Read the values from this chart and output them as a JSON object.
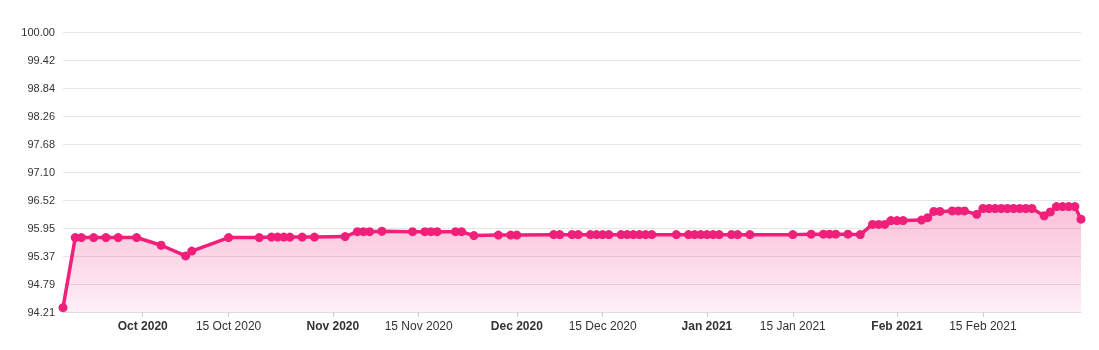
{
  "chart_data": {
    "type": "area",
    "x": [
      "2020-09-18",
      "2020-09-20",
      "2020-09-21",
      "2020-09-23",
      "2020-09-25",
      "2020-09-27",
      "2020-09-30",
      "2020-10-04",
      "2020-10-08",
      "2020-10-09",
      "2020-10-15",
      "2020-10-20",
      "2020-10-22",
      "2020-10-23",
      "2020-10-24",
      "2020-10-25",
      "2020-10-27",
      "2020-10-29",
      "2020-11-03",
      "2020-11-05",
      "2020-11-06",
      "2020-11-07",
      "2020-11-09",
      "2020-11-14",
      "2020-11-16",
      "2020-11-17",
      "2020-11-18",
      "2020-11-21",
      "2020-11-22",
      "2020-11-24",
      "2020-11-28",
      "2020-11-30",
      "2020-12-01",
      "2020-12-07",
      "2020-12-08",
      "2020-12-10",
      "2020-12-11",
      "2020-12-13",
      "2020-12-14",
      "2020-12-15",
      "2020-12-16",
      "2020-12-18",
      "2020-12-19",
      "2020-12-20",
      "2020-12-21",
      "2020-12-22",
      "2020-12-23",
      "2020-12-27",
      "2020-12-29",
      "2020-12-30",
      "2020-12-31",
      "2021-01-01",
      "2021-01-02",
      "2021-01-03",
      "2021-01-05",
      "2021-01-06",
      "2021-01-08",
      "2021-01-15",
      "2021-01-18",
      "2021-01-20",
      "2021-01-21",
      "2021-01-22",
      "2021-01-24",
      "2021-01-26",
      "2021-01-28",
      "2021-01-29",
      "2021-01-30",
      "2021-01-31",
      "2021-02-01",
      "2021-02-02",
      "2021-02-05",
      "2021-02-06",
      "2021-02-07",
      "2021-02-08",
      "2021-02-10",
      "2021-02-11",
      "2021-02-12",
      "2021-02-14",
      "2021-02-15",
      "2021-02-16",
      "2021-02-17",
      "2021-02-18",
      "2021-02-19",
      "2021-02-20",
      "2021-02-21",
      "2021-02-22",
      "2021-02-23",
      "2021-02-25",
      "2021-02-26",
      "2021-02-27",
      "2021-02-28",
      "2021-03-01",
      "2021-03-02",
      "2021-03-03"
    ],
    "series": [
      {
        "color": "#f0207a",
        "values": [
          94.3,
          95.75,
          95.75,
          95.75,
          95.75,
          95.75,
          95.75,
          95.59,
          95.37,
          95.47,
          95.75,
          95.75,
          95.76,
          95.76,
          95.76,
          95.76,
          95.76,
          95.76,
          95.77,
          95.87,
          95.87,
          95.87,
          95.88,
          95.87,
          95.87,
          95.87,
          95.87,
          95.87,
          95.87,
          95.79,
          95.8,
          95.8,
          95.8,
          95.81,
          95.81,
          95.81,
          95.81,
          95.81,
          95.81,
          95.81,
          95.81,
          95.81,
          95.81,
          95.81,
          95.81,
          95.81,
          95.81,
          95.81,
          95.81,
          95.81,
          95.81,
          95.81,
          95.81,
          95.81,
          95.81,
          95.81,
          95.81,
          95.81,
          95.82,
          95.82,
          95.82,
          95.82,
          95.82,
          95.81,
          96.02,
          96.02,
          96.02,
          96.1,
          96.1,
          96.1,
          96.11,
          96.16,
          96.29,
          96.29,
          96.3,
          96.3,
          96.3,
          96.23,
          96.35,
          96.35,
          96.35,
          96.35,
          96.35,
          96.35,
          96.35,
          96.35,
          96.35,
          96.2,
          96.28,
          96.39,
          96.39,
          96.39,
          96.39,
          96.13
        ]
      }
    ],
    "xlim": [
      "2020-09-18",
      "2021-03-03"
    ],
    "xticks": [
      {
        "value": "2020-10-01",
        "label": "Oct 2020"
      },
      {
        "value": "2020-10-15",
        "label": "15 Oct 2020"
      },
      {
        "value": "2020-11-01",
        "label": "Nov 2020"
      },
      {
        "value": "2020-11-15",
        "label": "15 Nov 2020"
      },
      {
        "value": "2020-12-01",
        "label": "Dec 2020"
      },
      {
        "value": "2020-12-15",
        "label": "15 Dec 2020"
      },
      {
        "value": "2021-01-01",
        "label": "Jan 2021"
      },
      {
        "value": "2021-01-15",
        "label": "15 Jan 2021"
      },
      {
        "value": "2021-02-01",
        "label": "Feb 2021"
      },
      {
        "value": "2021-02-15",
        "label": "15 Feb 2021"
      }
    ],
    "ylim": [
      94.21,
      100
    ],
    "yticks": [
      94.21,
      94.79,
      95.37,
      95.95,
      96.52,
      {
        "value": 97.1,
        "label": "97.10"
      },
      97.68,
      98.26,
      98.84,
      99.42,
      {
        "value": 100,
        "label": "100.00"
      }
    ],
    "grid": "y",
    "marker": "circle",
    "line_style": "solid"
  }
}
